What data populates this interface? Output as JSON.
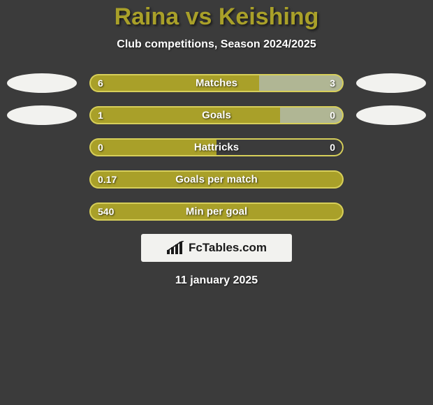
{
  "header": {
    "title": "Raina vs Keishing",
    "title_color": "#a9a029",
    "title_fontsize": 34,
    "subtitle": "Club competitions, Season 2024/2025",
    "subtitle_fontsize": 16
  },
  "colors": {
    "background": "#3b3b3b",
    "left_fill": "#a9a029",
    "right_fill": "#b0b694",
    "bar_border": "#d7cf5a",
    "oval_fill": "#f2f2ef",
    "text_on_bar": "#ffffff",
    "logo_bg": "#f2f2ef",
    "logo_text": "#1a1a1a"
  },
  "ovals": {
    "left_rows": [
      0,
      1
    ],
    "right_rows": [
      0,
      1
    ],
    "width": 100,
    "height": 28
  },
  "bars": {
    "track_height": 26,
    "border_radius": 13,
    "border_width": 2,
    "value_fontsize": 14,
    "label_fontsize": 15,
    "rows": [
      {
        "label": "Matches",
        "left_value": "6",
        "right_value": "3",
        "left_pct": 66.7,
        "right_pct": 33.3,
        "show_right_fill": true
      },
      {
        "label": "Goals",
        "left_value": "1",
        "right_value": "0",
        "left_pct": 75.0,
        "right_pct": 25.0,
        "show_right_fill": true
      },
      {
        "label": "Hattricks",
        "left_value": "0",
        "right_value": "0",
        "left_pct": 50.0,
        "right_pct": 50.0,
        "show_right_fill": false
      },
      {
        "label": "Goals per match",
        "left_value": "0.17",
        "right_value": "",
        "left_pct": 100,
        "right_pct": 0,
        "show_right_fill": false
      },
      {
        "label": "Min per goal",
        "left_value": "540",
        "right_value": "",
        "left_pct": 100,
        "right_pct": 0,
        "show_right_fill": false
      }
    ]
  },
  "footer": {
    "logo_icon": "signal-bars-icon",
    "logo_text": "FcTables.com",
    "logo_fontsize": 17,
    "date": "11 january 2025",
    "date_fontsize": 16
  }
}
